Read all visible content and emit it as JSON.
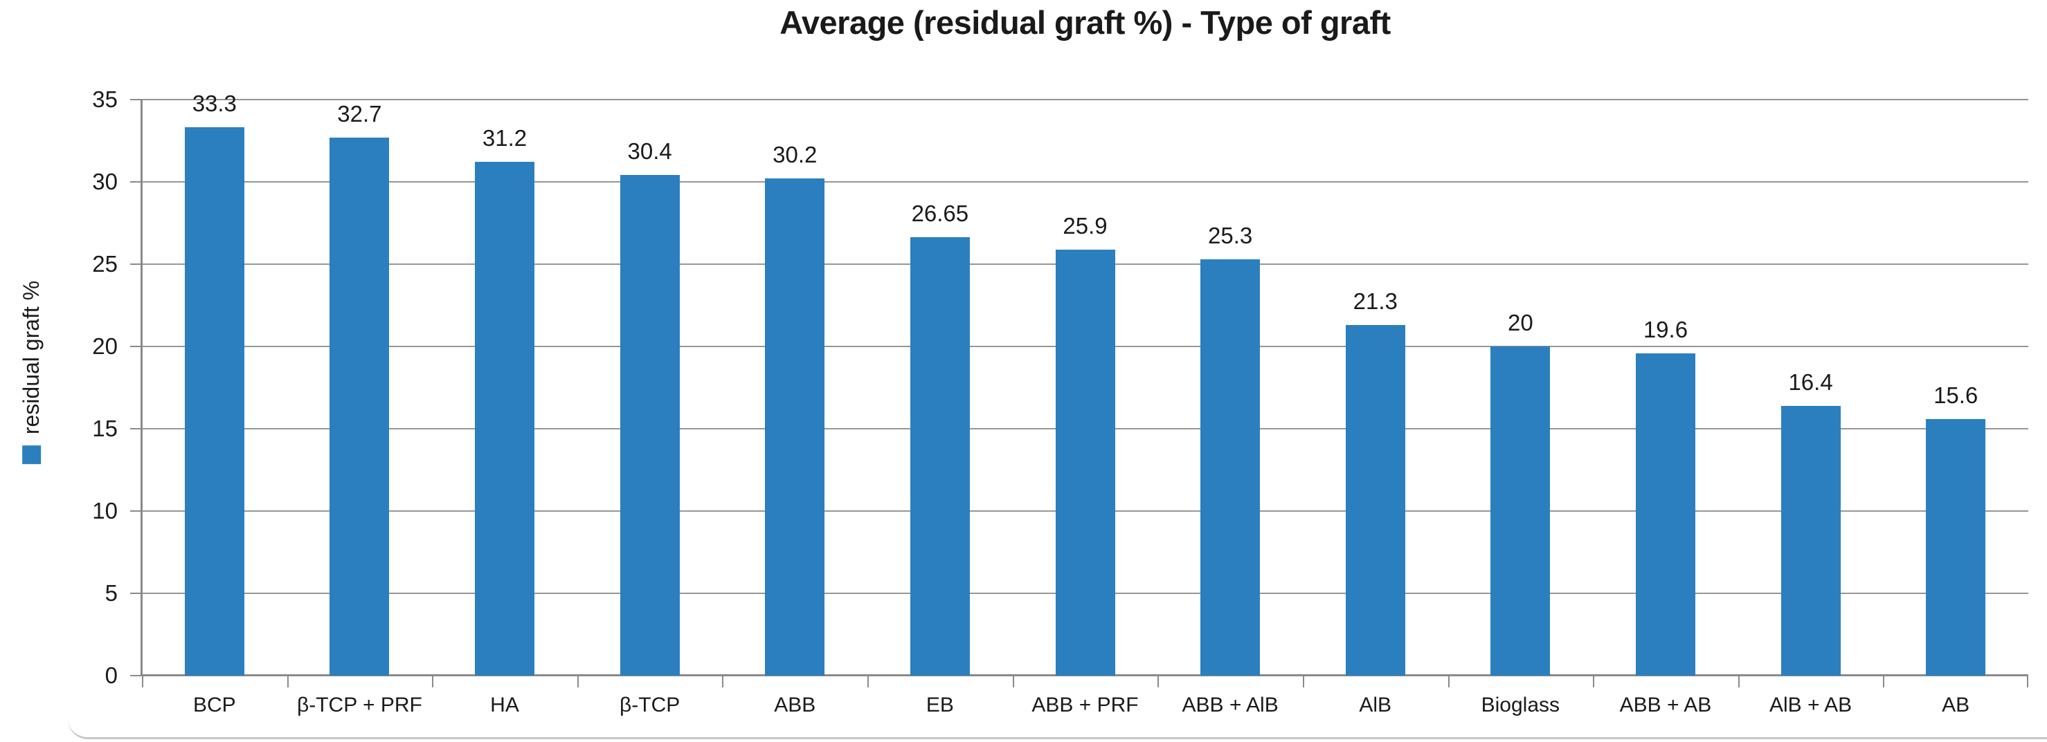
{
  "chart_data": {
    "type": "bar",
    "title": "Average (residual graft %) - Type of graft",
    "ylabel": "residual graft %",
    "xlabel": "",
    "categories": [
      "BCP",
      "β-TCP + PRF",
      "HA",
      "β-TCP",
      "ABB",
      "EB",
      "ABB + PRF",
      "ABB + AlB",
      "AlB",
      "Bioglass",
      "ABB + AB",
      "AlB + AB",
      "AB"
    ],
    "values": [
      33.3,
      32.7,
      31.2,
      30.4,
      30.2,
      26.65,
      25.9,
      25.3,
      21.3,
      20,
      19.6,
      16.4,
      15.6
    ],
    "ylim": [
      0,
      35
    ],
    "yticks": [
      0,
      5,
      10,
      15,
      20,
      25,
      30,
      35
    ],
    "grid": true,
    "legend_position": "left-rotated",
    "bar_color": "#2b7fbe",
    "gridline_color": "#969696",
    "axis_color": "#8a8a8a"
  },
  "legend": {
    "marker": "square",
    "marker_color": "#2b7fbe",
    "label": "residual graft %"
  }
}
